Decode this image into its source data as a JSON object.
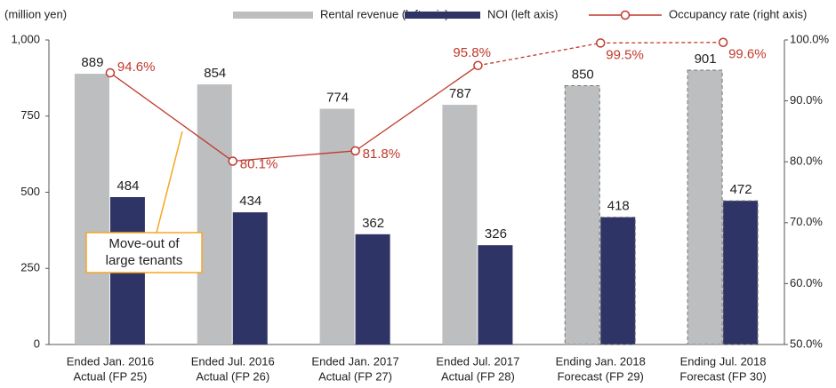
{
  "chart_data": {
    "type": "bar_line",
    "y_axis_label": "(million yen)",
    "categories": [
      [
        "Ended Jan. 2016",
        "Actual (FP 25)"
      ],
      [
        "Ended Jul. 2016",
        "Actual (FP 26)"
      ],
      [
        "Ended Jan. 2017",
        "Actual (FP 27)"
      ],
      [
        "Ended Jul. 2017",
        "Actual (FP 28)"
      ],
      [
        "Ending Jan. 2018",
        "Forecast (FP 29)"
      ],
      [
        "Ending Jul. 2018",
        "Forecast (FP 30)"
      ]
    ],
    "forecast": [
      false,
      false,
      false,
      false,
      true,
      true
    ],
    "series": [
      {
        "name": "Rental revenue (left axis)",
        "color": "#bcbec0",
        "values": [
          889,
          854,
          774,
          787,
          850,
          901
        ]
      },
      {
        "name": "NOI (left axis)",
        "color": "#2e3466",
        "values": [
          484,
          434,
          362,
          326,
          418,
          472
        ]
      },
      {
        "name": "Occupancy rate (right axis)",
        "color": "#c0392b",
        "axis": "y2",
        "values": [
          94.6,
          80.1,
          81.8,
          95.8,
          99.5,
          99.6
        ],
        "value_labels": [
          "94.6%",
          "80.1%",
          "81.8%",
          "95.8%",
          "99.5%",
          "99.6%"
        ]
      }
    ],
    "ylim": [
      0,
      1000
    ],
    "yticks": [
      0,
      250,
      500,
      750,
      {
        "value": 1000,
        "label": "1,000"
      }
    ],
    "y2lim": [
      50,
      100
    ],
    "y2ticks": [
      {
        "value": 50,
        "label": "50.0%"
      },
      {
        "value": 60,
        "label": "60.0%"
      },
      {
        "value": 70,
        "label": "70.0%"
      },
      {
        "value": 80,
        "label": "80.0%"
      },
      {
        "value": 90,
        "label": "90.0%"
      },
      {
        "value": 100,
        "label": "100.0%"
      }
    ],
    "annotation": [
      "Move-out of",
      "large tenants"
    ]
  }
}
